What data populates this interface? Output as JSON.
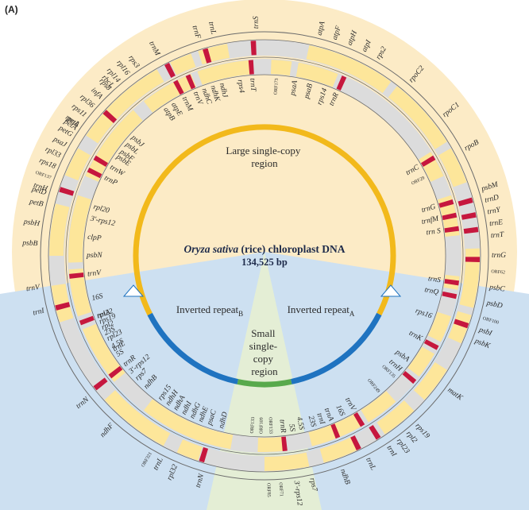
{
  "panel_label": "(A)",
  "title": {
    "organism": "Oryza sativa",
    "rest": " (rice) chloroplast DNA",
    "size": "134,525 bp"
  },
  "regions": {
    "lsc": [
      "Large single-copy",
      "region"
    ],
    "ssc": [
      "Small",
      "single-",
      "copy",
      "region"
    ],
    "ira": {
      "text": "Inverted repeat",
      "sub": "A"
    },
    "irb": {
      "text": "Inverted repeat",
      "sub": "B"
    }
  },
  "colors": {
    "lsc_fill": "#fcebc6",
    "ir_fill": "#cde0f1",
    "ssc_fill": "#e4eed5",
    "gene_block": "#fde69a",
    "trna": "#c6173e",
    "ring_grey": "#dcdcdc",
    "lsc_arc": "#f2b91b",
    "ira_arc": "#1f73c0",
    "irb_arc": "#1f73c0",
    "ssc_arc": "#58a94c"
  },
  "outer_labels": [
    {
      "text": "trnS",
      "angle": -2
    },
    {
      "text": "atpA",
      "angle": 14
    },
    {
      "text": "atpF",
      "angle": 18
    },
    {
      "text": "atpH",
      "angle": 22
    },
    {
      "text": "atpI",
      "angle": 26
    },
    {
      "text": "rps2",
      "angle": 30
    },
    {
      "text": "rpoC2",
      "angle": 40
    },
    {
      "text": "rpoC1",
      "angle": 52
    },
    {
      "text": "rpoB",
      "angle": 62
    },
    {
      "text": "psbM",
      "angle": 73
    },
    {
      "text": "trnD",
      "angle": 76
    },
    {
      "text": "trnY",
      "angle": 79
    },
    {
      "text": "trnE",
      "angle": 82
    },
    {
      "text": "trnT",
      "angle": 85
    },
    {
      "text": "trnG",
      "angle": 90
    },
    {
      "text": "ORF62",
      "angle": 94,
      "orf": true
    },
    {
      "text": "psbC",
      "angle": 98
    },
    {
      "text": "psbD",
      "angle": 102
    },
    {
      "text": "ORF100",
      "angle": 106,
      "orf": true
    },
    {
      "text": "psbI",
      "angle": 109
    },
    {
      "text": "psbK",
      "angle": 112
    },
    {
      "text": "matK",
      "angle": 126
    },
    {
      "text": "rps19",
      "angle": 138
    },
    {
      "text": "rpl2",
      "angle": 141
    },
    {
      "text": "rpl23",
      "angle": 144
    },
    {
      "text": "trnI",
      "angle": 147
    },
    {
      "text": "trnL",
      "angle": 153
    },
    {
      "text": "ndhB",
      "angle": 160
    },
    {
      "text": "rps7",
      "angle": 168
    },
    {
      "text": "3'-rps12",
      "angle": 172
    },
    {
      "text": "ORF71",
      "angle": 176,
      "orf": true
    },
    {
      "text": "ORF85",
      "angle": 179,
      "orf": true
    },
    {
      "text": "trnN",
      "angle": 196
    },
    {
      "text": "rpl32",
      "angle": 203
    },
    {
      "text": "trnL",
      "angle": 207
    },
    {
      "text": "ORF321",
      "angle": 210,
      "orf": true
    },
    {
      "text": "ndhF",
      "angle": 222
    },
    {
      "text": "trnN",
      "angle": 231
    },
    {
      "text": "trnI",
      "angle": 256
    },
    {
      "text": "trnV",
      "angle": 262
    },
    {
      "text": "trnH",
      "angle": 287
    },
    {
      "text": "ORF137",
      "angle": 290,
      "orf": true
    },
    {
      "text": "rpoA",
      "angle": 305
    },
    {
      "text": "rps11",
      "angle": 308
    },
    {
      "text": "rpl36",
      "angle": 311
    },
    {
      "text": "infA",
      "angle": 314
    },
    {
      "text": "rps8",
      "angle": 317
    },
    {
      "text": "rpl14",
      "angle": 320
    },
    {
      "text": "rpl16",
      "angle": 323
    },
    {
      "text": "rps3",
      "angle": 326
    },
    {
      "text": "petD",
      "angle": 286
    },
    {
      "text": "petB",
      "angle": 283
    },
    {
      "text": "psbH",
      "angle": 278
    },
    {
      "text": "psbB",
      "angle": 273
    },
    {
      "text": "rps18",
      "angle": 293
    },
    {
      "text": "rpl33",
      "angle": 296
    },
    {
      "text": "psaJ",
      "angle": 299
    },
    {
      "text": "petG",
      "angle": 302
    },
    {
      "text": "petL",
      "angle": 305
    },
    {
      "text": "petA",
      "angle": 304
    },
    {
      "text": "rbcL",
      "angle": 318
    },
    {
      "text": "trnM",
      "angle": 332
    },
    {
      "text": "trnF",
      "angle": 343
    },
    {
      "text": "trnL",
      "angle": 347
    }
  ],
  "inner_labels": [
    {
      "text": "trnG",
      "angle": 74
    },
    {
      "text": "trnfM",
      "angle": 78
    },
    {
      "text": "trn S",
      "angle": 82
    },
    {
      "text": "trnC",
      "angle": 60
    },
    {
      "text": "ORF29",
      "angle": 64,
      "orf": true
    },
    {
      "text": "trnS",
      "angle": 98
    },
    {
      "text": "trnQ",
      "angle": 102
    },
    {
      "text": "rps16",
      "angle": 110
    },
    {
      "text": "trnK",
      "angle": 118
    },
    {
      "text": "psbA",
      "angle": 126
    },
    {
      "text": "trnH",
      "angle": 130
    },
    {
      "text": "ORF135",
      "angle": 133,
      "orf": true
    },
    {
      "text": "ORF249",
      "angle": 140,
      "orf": true
    },
    {
      "text": "trnV",
      "angle": 150
    },
    {
      "text": "16S",
      "angle": 154
    },
    {
      "text": "trnA",
      "angle": 158
    },
    {
      "text": "trnI",
      "angle": 161
    },
    {
      "text": "23S",
      "angle": 164
    },
    {
      "text": "4.5S",
      "angle": 168
    },
    {
      "text": "5S",
      "angle": 171
    },
    {
      "text": "trnR",
      "angle": 174
    },
    {
      "text": "ORF133",
      "angle": 178,
      "orf": true
    },
    {
      "text": "ORF109",
      "angle": 181,
      "orf": true
    },
    {
      "text": "ndhD",
      "angle": 194
    },
    {
      "text": "psaC",
      "angle": 198
    },
    {
      "text": "ndhE",
      "angle": 201
    },
    {
      "text": "ndhG",
      "angle": 204
    },
    {
      "text": "ndhI",
      "angle": 207
    },
    {
      "text": "ndhA",
      "angle": 210
    },
    {
      "text": "ndhH",
      "angle": 213
    },
    {
      "text": "rps15",
      "angle": 216
    },
    {
      "text": "trnR",
      "angle": 232
    },
    {
      "text": "5S",
      "angle": 236
    },
    {
      "text": "4.5S",
      "angle": 239
    },
    {
      "text": "23S",
      "angle": 244
    },
    {
      "text": "trnA",
      "angle": 250
    },
    {
      "text": "16S",
      "angle": 256
    },
    {
      "text": "trnV",
      "angle": 264
    },
    {
      "text": "ORF133",
      "angle": 184,
      "orf": true
    },
    {
      "text": "ndhB",
      "angle": 222
    },
    {
      "text": "rps7",
      "angle": 226
    },
    {
      "text": "3'-rps12",
      "angle": 229
    },
    {
      "text": "trnL",
      "angle": 238
    },
    {
      "text": "rpl23",
      "angle": 242
    },
    {
      "text": "rpl2",
      "angle": 246
    },
    {
      "text": "rpl22",
      "angle": 250
    },
    {
      "text": "rps19",
      "angle": 248
    },
    {
      "text": "psbN",
      "angle": 270
    },
    {
      "text": "clpP",
      "angle": 276
    },
    {
      "text": "3'-rps12",
      "angle": 282
    },
    {
      "text": "rpl20",
      "angle": 286
    },
    {
      "text": "trnP",
      "angle": 296
    },
    {
      "text": "trnW",
      "angle": 300
    },
    {
      "text": "psbE",
      "angle": 304
    },
    {
      "text": "psbF",
      "angle": 306
    },
    {
      "text": "psbL",
      "angle": 309
    },
    {
      "text": "psbJ",
      "angle": 312
    },
    {
      "text": "atpB",
      "angle": 326
    },
    {
      "text": "atpE",
      "angle": 329
    },
    {
      "text": "trnM",
      "angle": 333
    },
    {
      "text": "trnV",
      "angle": 337
    },
    {
      "text": "ndhC",
      "angle": 340
    },
    {
      "text": "ndhK",
      "angle": 343
    },
    {
      "text": "ndhJ",
      "angle": 346
    },
    {
      "text": "trnT",
      "angle": 356
    },
    {
      "text": "rps4",
      "angle": 352
    },
    {
      "text": "psaA",
      "angle": 10
    },
    {
      "text": "psaB",
      "angle": 15
    },
    {
      "text": "rps14",
      "angle": 20
    },
    {
      "text": "trnR",
      "angle": 24
    },
    {
      "text": "ORF173",
      "angle": 4,
      "orf": true
    }
  ]
}
